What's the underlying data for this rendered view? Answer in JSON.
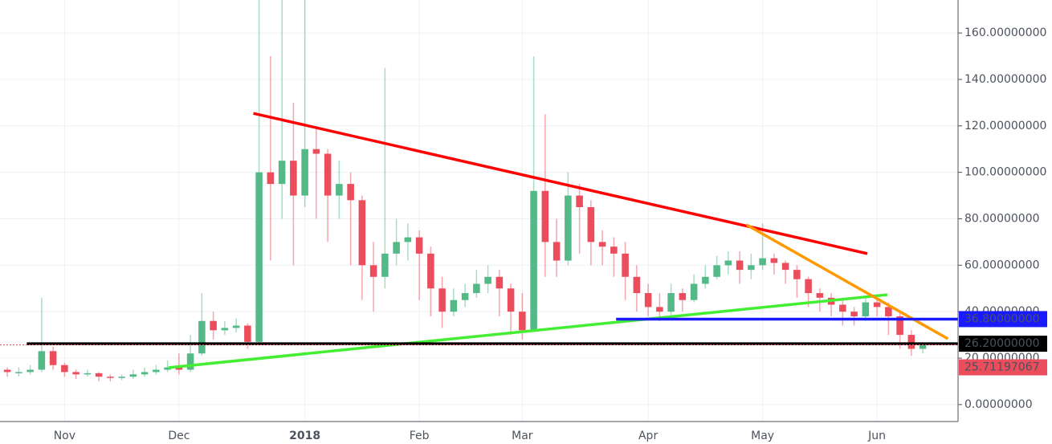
{
  "chart_data": {
    "type": "candlestick",
    "xlim": [
      -0.64,
      83.08
    ],
    "xticks": [
      {
        "value": 5,
        "label": "Nov"
      },
      {
        "value": 15,
        "label": "Dec"
      },
      {
        "value": 26,
        "label": "2018"
      },
      {
        "value": 36,
        "label": "Feb"
      },
      {
        "value": 45,
        "label": "Mar"
      },
      {
        "value": 56,
        "label": "Apr"
      },
      {
        "value": 66,
        "label": "May"
      },
      {
        "value": 76,
        "label": "Jun"
      }
    ],
    "ylim": [
      -7.3,
      174.2
    ],
    "yticks": [
      {
        "value": 0,
        "label": "0.00000000"
      },
      {
        "value": 20,
        "label": "20.00000000"
      },
      {
        "value": 40,
        "label": "40.00000000"
      },
      {
        "value": 60,
        "label": "60.00000000"
      },
      {
        "value": 80,
        "label": "80.00000000"
      },
      {
        "value": 100,
        "label": "100.00000000"
      },
      {
        "value": 120,
        "label": "120.00000000"
      },
      {
        "value": 140,
        "label": "140.00000000"
      },
      {
        "value": 160,
        "label": "160.00000000"
      }
    ],
    "grid": true,
    "up_color": "#53b987",
    "down_color": "#eb4d5c",
    "open": [
      15,
      14,
      14,
      15,
      23,
      17,
      14,
      13,
      13.5,
      12,
      11.5,
      12,
      13,
      14,
      15,
      16,
      15,
      22,
      36,
      32,
      33,
      34,
      27,
      100,
      95,
      105,
      90,
      110,
      108,
      90,
      95,
      88,
      60,
      55,
      65,
      70,
      72,
      65,
      50,
      40,
      45,
      48,
      52,
      55,
      50,
      40,
      32,
      92,
      70,
      62,
      90,
      85,
      70,
      68,
      65,
      55,
      48,
      42,
      40,
      48,
      45,
      52,
      55,
      60,
      62,
      58,
      60,
      63,
      61,
      58,
      54,
      48,
      46,
      43,
      40,
      38,
      44,
      42,
      38,
      30,
      24
    ],
    "high": [
      16,
      16,
      17,
      46,
      25,
      18,
      15,
      15,
      14,
      13,
      13,
      15,
      16,
      17,
      19,
      22,
      30,
      48,
      40,
      36,
      37,
      35,
      175,
      150,
      175,
      130,
      175,
      120,
      110,
      105,
      100,
      90,
      70,
      145,
      80,
      78,
      75,
      68,
      55,
      50,
      52,
      58,
      60,
      58,
      52,
      48,
      150,
      125,
      80,
      100,
      95,
      88,
      75,
      72,
      70,
      60,
      52,
      48,
      52,
      50,
      56,
      60,
      64,
      66,
      66,
      65,
      78,
      65,
      62,
      60,
      55,
      50,
      48,
      46,
      42,
      47,
      46,
      44,
      40,
      32,
      27
    ],
    "low": [
      12,
      12,
      13,
      14,
      15,
      12,
      11,
      12,
      10,
      10,
      10.5,
      11,
      12,
      13,
      14,
      13,
      14,
      21,
      28,
      30,
      31,
      24,
      26,
      62,
      80,
      60,
      85,
      80,
      70,
      80,
      60,
      45,
      40,
      50,
      60,
      62,
      45,
      38,
      33,
      38,
      42,
      46,
      48,
      38,
      30,
      28,
      32,
      55,
      55,
      60,
      65,
      60,
      60,
      55,
      45,
      40,
      38,
      36,
      38,
      40,
      44,
      50,
      54,
      56,
      52,
      54,
      58,
      56,
      52,
      46,
      42,
      40,
      38,
      34,
      34,
      36,
      38,
      30,
      24,
      21,
      22
    ],
    "close": [
      14,
      14,
      15,
      23,
      17,
      14,
      13,
      13.5,
      12,
      11.5,
      12,
      13,
      14,
      15,
      16,
      15,
      22,
      36,
      32,
      33,
      34,
      27,
      100,
      95,
      105,
      90,
      110,
      108,
      90,
      95,
      88,
      60,
      55,
      65,
      70,
      72,
      65,
      50,
      40,
      45,
      48,
      52,
      55,
      50,
      40,
      32,
      92,
      70,
      62,
      90,
      85,
      70,
      68,
      65,
      55,
      48,
      42,
      40,
      48,
      45,
      52,
      55,
      60,
      62,
      58,
      60,
      63,
      61,
      58,
      54,
      48,
      46,
      43,
      40,
      38,
      44,
      42,
      38,
      30,
      24,
      25.71
    ],
    "trend_lines": [
      {
        "color": "#ff0000",
        "x": [
          21.5,
          75.15
        ],
        "y": [
          125.4,
          65
        ]
      },
      {
        "color": "#44ee33",
        "x": [
          14.1,
          76.9
        ],
        "y": [
          15.9,
          47.3
        ]
      },
      {
        "color": "#ff9900",
        "x": [
          64.6,
          82.2
        ],
        "y": [
          77.4,
          28.3
        ]
      }
    ],
    "price_lines": [
      {
        "value": 36.8,
        "label": "36.80000000",
        "color": "#1a1aff",
        "from": 53.2
      },
      {
        "value": 26.2,
        "label": "26.20000000",
        "color": "#000000",
        "from": 1.7
      },
      {
        "value": 25.71197067,
        "label": "25.71197067",
        "color": "#eb4d5c",
        "from": -0.64,
        "dotted": true
      }
    ]
  }
}
